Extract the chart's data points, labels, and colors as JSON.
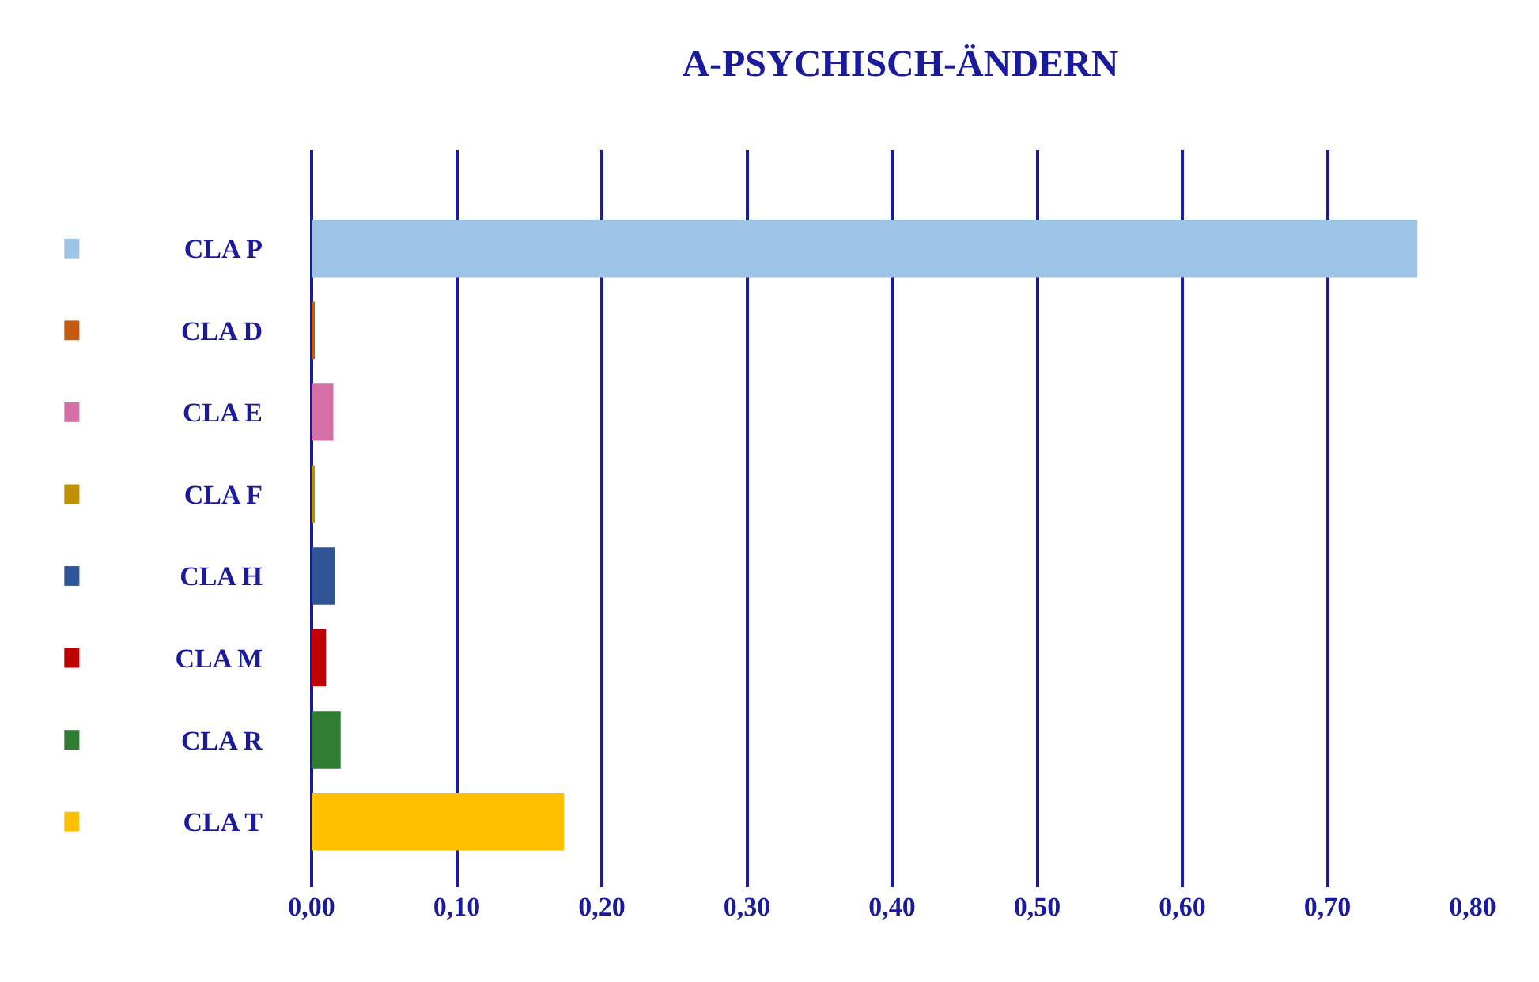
{
  "chart_data": {
    "type": "bar",
    "orientation": "horizontal",
    "title": "A-PSYCHISCH-ÄNDERN",
    "categories": [
      "CLA P",
      "CLA D",
      "CLA E",
      "CLA F",
      "CLA H",
      "CLA M",
      "CLA R",
      "CLA T"
    ],
    "values": [
      0.762,
      0.002,
      0.015,
      0.002,
      0.016,
      0.01,
      0.02,
      0.174
    ],
    "colors": [
      "#9dc3e6",
      "#c55a11",
      "#d66fa8",
      "#bf9000",
      "#2f5597",
      "#c00000",
      "#2e7d32",
      "#ffc000"
    ],
    "xlim": [
      0,
      0.8
    ],
    "xticks": [
      {
        "value": 0,
        "label": "0,00"
      },
      {
        "value": 0.1,
        "label": "0,10"
      },
      {
        "value": 0.2,
        "label": "0,20"
      },
      {
        "value": 0.3,
        "label": "0,30"
      },
      {
        "value": 0.4,
        "label": "0,40"
      },
      {
        "value": 0.5,
        "label": "0,50"
      },
      {
        "value": 0.6,
        "label": "0,60"
      },
      {
        "value": 0.7,
        "label": "0,70"
      },
      {
        "value": 0.8,
        "label": "0,80"
      }
    ],
    "grid": "x"
  }
}
